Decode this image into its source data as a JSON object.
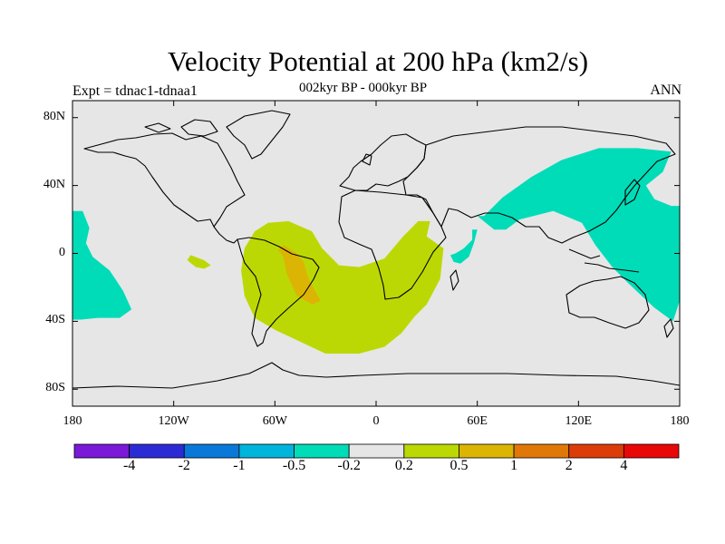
{
  "title": "Velocity Potential at 200 hPa (km2/s)",
  "subtitle": "002kyr BP - 000kyr BP",
  "experiment": "Expt = tdnac1-tdnaa1",
  "season": "ANN",
  "lat_ticks": [
    {
      "value": 80,
      "label": "80N"
    },
    {
      "value": 40,
      "label": "40N"
    },
    {
      "value": 0,
      "label": "0"
    },
    {
      "value": -40,
      "label": "40S"
    },
    {
      "value": -80,
      "label": "80S"
    }
  ],
  "lon_ticks": [
    {
      "value": -180,
      "label": "180"
    },
    {
      "value": -120,
      "label": "120W"
    },
    {
      "value": -60,
      "label": "60W"
    },
    {
      "value": 0,
      "label": "0"
    },
    {
      "value": 60,
      "label": "60E"
    },
    {
      "value": 120,
      "label": "120E"
    },
    {
      "value": 180,
      "label": "180"
    }
  ],
  "colorbar": {
    "colors": [
      "#7a19d8",
      "#2b2bd6",
      "#0a78d8",
      "#00b4dc",
      "#00dcb8",
      "#e6e6e6",
      "#bcd804",
      "#dcb404",
      "#e07808",
      "#dc3c08",
      "#e80808"
    ],
    "labels": [
      "-4",
      "-2",
      "-1",
      "-0.5",
      "-0.2",
      "0.2",
      "0.5",
      "1",
      "2",
      "4"
    ]
  },
  "colors": {
    "background": "#e6e6e6",
    "negative_anomaly": "#00dcb8",
    "positive_weak": "#bcd804",
    "positive_strong": "#dcb404"
  },
  "chart_data": {
    "type": "heatmap",
    "projection": "cylindrical-equidistant",
    "variable": "Velocity Potential at 200 hPa",
    "units": "km2/s",
    "lon_range": [
      -180,
      180
    ],
    "lat_range": [
      -90,
      90
    ],
    "contour_levels": [
      -4,
      -2,
      -1,
      -0.5,
      -0.2,
      0.2,
      0.5,
      1,
      2,
      4
    ],
    "regions": [
      {
        "name": "west-pacific-asia-negative",
        "level_range": [
          -0.5,
          -0.2
        ],
        "color": "#00dcb8",
        "polygon": [
          [
            64,
            22
          ],
          [
            75,
            33
          ],
          [
            92,
            45
          ],
          [
            110,
            55
          ],
          [
            132,
            62
          ],
          [
            155,
            62
          ],
          [
            175,
            60
          ],
          [
            170,
            48
          ],
          [
            160,
            40
          ],
          [
            165,
            32
          ],
          [
            175,
            28
          ],
          [
            180,
            28
          ],
          [
            180,
            -28
          ],
          [
            176,
            -40
          ],
          [
            165,
            -32
          ],
          [
            150,
            -18
          ],
          [
            140,
            -8
          ],
          [
            130,
            5
          ],
          [
            122,
            18
          ],
          [
            105,
            25
          ],
          [
            85,
            20
          ],
          [
            77,
            14
          ],
          [
            70,
            14
          ],
          [
            60,
            22
          ]
        ]
      },
      {
        "name": "east-pacific-negative",
        "level_range": [
          -0.5,
          -0.2
        ],
        "color": "#00dcb8",
        "polygon": [
          [
            -180,
            25
          ],
          [
            -174,
            25
          ],
          [
            -170,
            15
          ],
          [
            -172,
            6
          ],
          [
            -168,
            -2
          ],
          [
            -158,
            -10
          ],
          [
            -150,
            -22
          ],
          [
            -145,
            -33
          ],
          [
            -152,
            -38
          ],
          [
            -165,
            -38
          ],
          [
            -175,
            -39
          ],
          [
            -180,
            -39
          ]
        ]
      },
      {
        "name": "east-africa-negative",
        "level_range": [
          -0.5,
          -0.2
        ],
        "color": "#00dcb8",
        "polygon": [
          [
            47,
            0
          ],
          [
            52,
            3
          ],
          [
            57,
            8
          ],
          [
            57,
            14
          ],
          [
            60,
            14
          ],
          [
            58,
            6
          ],
          [
            55,
            -2
          ],
          [
            50,
            -6
          ],
          [
            46,
            -5
          ],
          [
            44,
            -1
          ]
        ]
      },
      {
        "name": "south-atlantic-positive",
        "level_range": [
          0.2,
          0.5
        ],
        "color": "#bcd804",
        "polygon": [
          [
            -72,
            13
          ],
          [
            -64,
            18
          ],
          [
            -52,
            19
          ],
          [
            -38,
            13
          ],
          [
            -32,
            3
          ],
          [
            -22,
            -7
          ],
          [
            -10,
            -8
          ],
          [
            5,
            -3
          ],
          [
            16,
            10
          ],
          [
            25,
            19
          ],
          [
            32,
            19
          ],
          [
            30,
            10
          ],
          [
            40,
            3
          ],
          [
            38,
            -15
          ],
          [
            30,
            -30
          ],
          [
            23,
            -37
          ],
          [
            15,
            -47
          ],
          [
            5,
            -55
          ],
          [
            -10,
            -59
          ],
          [
            -30,
            -59
          ],
          [
            -45,
            -52
          ],
          [
            -60,
            -45
          ],
          [
            -72,
            -38
          ],
          [
            -78,
            -25
          ],
          [
            -80,
            -10
          ],
          [
            -78,
            3
          ]
        ]
      },
      {
        "name": "east-pacific-small-positive",
        "level_range": [
          0.2,
          0.5
        ],
        "color": "#bcd804",
        "polygon": [
          [
            -110,
            -1
          ],
          [
            -102,
            -4
          ],
          [
            -98,
            -7
          ],
          [
            -102,
            -9
          ],
          [
            -107,
            -8
          ],
          [
            -112,
            -4
          ]
        ]
      },
      {
        "name": "brazil-positive",
        "level_range": [
          0.5,
          1
        ],
        "color": "#dcb404",
        "polygon": [
          [
            -55,
            5
          ],
          [
            -50,
            2
          ],
          [
            -47,
            0
          ],
          [
            -43,
            -5
          ],
          [
            -40,
            -15
          ],
          [
            -33,
            -28
          ],
          [
            -38,
            -30
          ],
          [
            -47,
            -25
          ],
          [
            -53,
            -12
          ],
          [
            -55,
            -2
          ],
          [
            -58,
            2
          ]
        ]
      }
    ]
  }
}
